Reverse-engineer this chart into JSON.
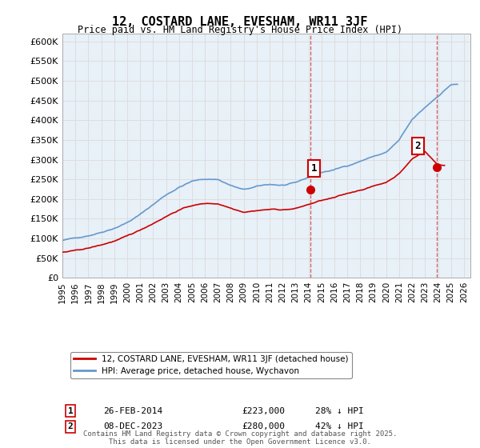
{
  "title": "12, COSTARD LANE, EVESHAM, WR11 3JF",
  "subtitle": "Price paid vs. HM Land Registry's House Price Index (HPI)",
  "ylabel": "",
  "xlim": [
    1995.0,
    2026.5
  ],
  "ylim": [
    0,
    620000
  ],
  "yticks": [
    0,
    50000,
    100000,
    150000,
    200000,
    250000,
    300000,
    350000,
    400000,
    450000,
    500000,
    550000,
    600000
  ],
  "ytick_labels": [
    "£0",
    "£50K",
    "£100K",
    "£150K",
    "£200K",
    "£250K",
    "£300K",
    "£350K",
    "£400K",
    "£450K",
    "£500K",
    "£550K",
    "£600K"
  ],
  "xticks": [
    1995,
    1996,
    1997,
    1998,
    1999,
    2000,
    2001,
    2002,
    2003,
    2004,
    2005,
    2006,
    2007,
    2008,
    2009,
    2010,
    2011,
    2012,
    2013,
    2014,
    2015,
    2016,
    2017,
    2018,
    2019,
    2020,
    2021,
    2022,
    2023,
    2024,
    2025,
    2026
  ],
  "point1_x": 2014.15,
  "point1_y": 223000,
  "point1_label": "1",
  "point1_date": "26-FEB-2014",
  "point1_price": "£223,000",
  "point1_hpi": "28% ↓ HPI",
  "point2_x": 2023.93,
  "point2_y": 280000,
  "point2_label": "2",
  "point2_date": "08-DEC-2023",
  "point2_price": "£280,000",
  "point2_hpi": "42% ↓ HPI",
  "red_color": "#cc0000",
  "blue_color": "#6699cc",
  "background_color": "#ffffff",
  "grid_color": "#dddddd",
  "footnote": "Contains HM Land Registry data © Crown copyright and database right 2025.\nThis data is licensed under the Open Government Licence v3.0.",
  "legend1": "12, COSTARD LANE, EVESHAM, WR11 3JF (detached house)",
  "legend2": "HPI: Average price, detached house, Wychavon"
}
